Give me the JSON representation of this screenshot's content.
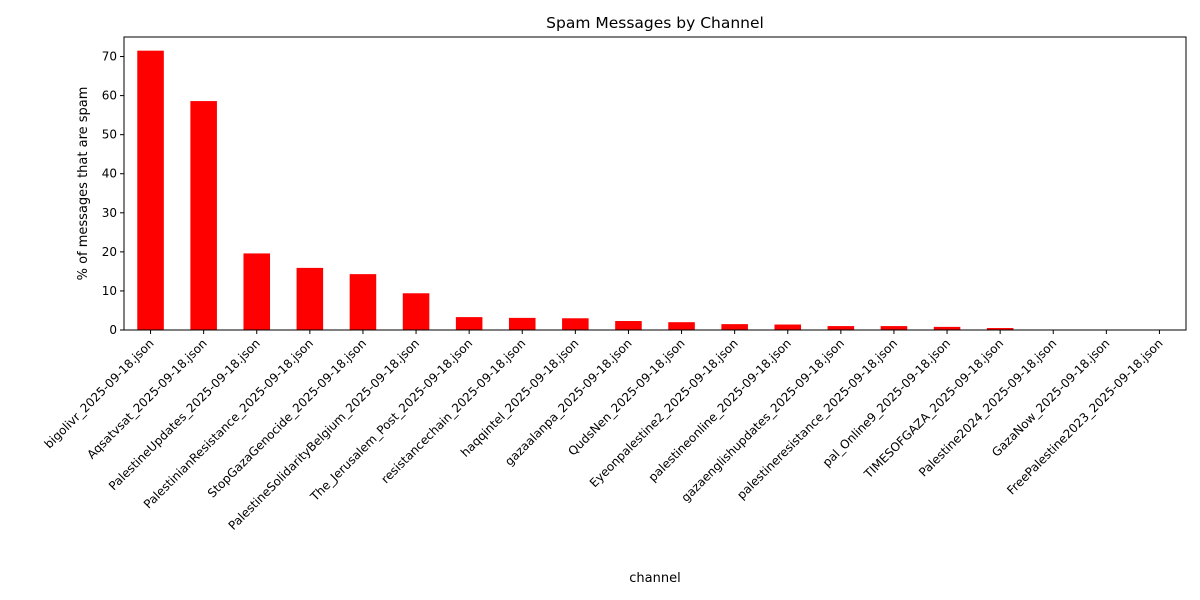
{
  "chart_data": {
    "type": "bar",
    "title": "Spam Messages by Channel",
    "xlabel": "channel",
    "ylabel": "% of messages that are spam",
    "ylim": [
      0,
      75
    ],
    "yticks": [
      0,
      10,
      20,
      30,
      40,
      50,
      60,
      70
    ],
    "bar_color": "#ff0000",
    "grid": false,
    "legend": "none",
    "categories": [
      "bigolivr_2025-09-18.json",
      "Aqsatvsat_2025-09-18.json",
      "PalestineUpdates_2025-09-18.json",
      "PalestinianResistance_2025-09-18.json",
      "StopGazaGenocide_2025-09-18.json",
      "PalestineSolidarityBelgium_2025-09-18.json",
      "The_Jerusalem_Post_2025-09-18.json",
      "resistancechain_2025-09-18.json",
      "haqqintel_2025-09-18.json",
      "gazaalanpa_2025-09-18.json",
      "QudsNen_2025-09-18.json",
      "Eyeonpalestine2_2025-09-18.json",
      "palestineonline_2025-09-18.json",
      "gazaenglishupdates_2025-09-18.json",
      "palestineresistance_2025-09-18.json",
      "pal_Online9_2025-09-18.json",
      "TIMESOFGAZA_2025-09-18.json",
      "Palestine2024_2025-09-18.json",
      "GazaNow_2025-09-18.json",
      "FreePalestine2023_2025-09-18.json"
    ],
    "values": [
      71.5,
      58.6,
      19.6,
      15.9,
      14.3,
      9.4,
      3.3,
      3.1,
      3.0,
      2.3,
      2.0,
      1.5,
      1.4,
      1.0,
      1.0,
      0.8,
      0.5,
      0.0,
      0.0,
      0.0
    ]
  }
}
